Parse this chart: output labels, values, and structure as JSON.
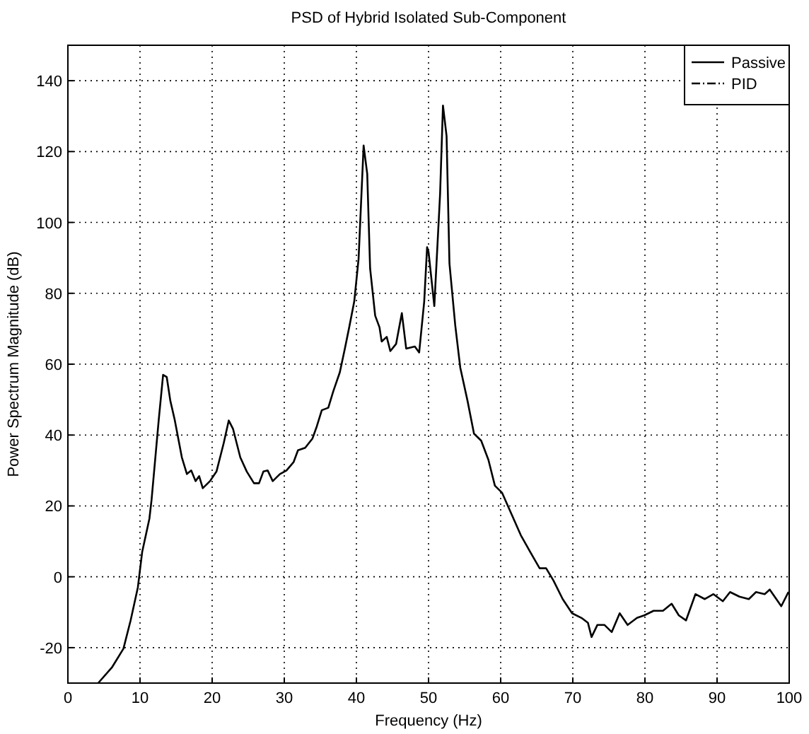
{
  "chart_data": {
    "type": "line",
    "title": "PSD of Hybrid Isolated Sub-Component",
    "xlabel": "Frequency (Hz)",
    "ylabel": "Power Spectrum Magnitude (dB)",
    "x": [
      4.2,
      6.1,
      7.7,
      8.7,
      9.7,
      10.3,
      11.3,
      11.6,
      12.6,
      13.2,
      13.7,
      14.2,
      14.8,
      15.8,
      16.5,
      17.1,
      17.7,
      18.2,
      18.7,
      19.7,
      20.6,
      21.6,
      22.3,
      22.9,
      23.9,
      24.8,
      25.8,
      26.5,
      27.1,
      27.7,
      28.4,
      29.4,
      30.3,
      31.3,
      31.9,
      32.9,
      33.9,
      34.5,
      35.2,
      36.1,
      36.8,
      37.7,
      38.4,
      39,
      39.7,
      40.3,
      41,
      41.5,
      41.9,
      42.6,
      43.2,
      43.5,
      44.2,
      44.7,
      45.5,
      46.3,
      46.9,
      48.1,
      48.7,
      49.4,
      49.8,
      50,
      50.8,
      51.6,
      52,
      52.5,
      52.9,
      53.7,
      54.4,
      55.4,
      56.3,
      57.3,
      58.3,
      59.2,
      60.2,
      61.5,
      62.8,
      64.1,
      65.4,
      66.3,
      67.3,
      68.6,
      69.9,
      71.2,
      72.1,
      72.6,
      73.4,
      74.4,
      75.4,
      76.5,
      77.6,
      78.9,
      79.9,
      81.2,
      82.5,
      83.7,
      84.7,
      85.7,
      87,
      88.3,
      89.5,
      90.8,
      91.8,
      93.1,
      94.4,
      95.4,
      96.6,
      97.3,
      98.9,
      99.9
    ],
    "series": [
      {
        "name": "Passive",
        "color": "#000000",
        "line_style": "solid",
        "values": [
          -30,
          -25.6,
          -20.3,
          -12.3,
          -3,
          7,
          16.4,
          21.7,
          44.4,
          57,
          56.4,
          49.7,
          44.4,
          33.7,
          29,
          30,
          27,
          28.4,
          25,
          27,
          29.7,
          37.7,
          44.1,
          41.7,
          33.7,
          29.7,
          26.4,
          26.4,
          29.7,
          30,
          27,
          29,
          30,
          32.4,
          35.7,
          36.4,
          39,
          42.4,
          47,
          47.7,
          52.4,
          57.7,
          64.4,
          70.4,
          77.7,
          89.7,
          121.7,
          113.7,
          87,
          73.7,
          70.4,
          66.4,
          67.7,
          63.7,
          65.7,
          74.4,
          64.4,
          65,
          63.3,
          77.7,
          93,
          91.7,
          76.4,
          108,
          133,
          124.4,
          88.4,
          71,
          59,
          49.7,
          40.4,
          38.4,
          33,
          25.7,
          23.7,
          17.7,
          11.7,
          7,
          2.4,
          2.4,
          -1,
          -6.3,
          -10.3,
          -11.6,
          -13,
          -17,
          -13.6,
          -13.6,
          -15.6,
          -10.3,
          -13.6,
          -11.6,
          -10.9,
          -9.6,
          -9.6,
          -7.6,
          -10.9,
          -12.3,
          -4.9,
          -6.3,
          -4.9,
          -6.9,
          -4.3,
          -5.6,
          -6.3,
          -4.3,
          -4.9,
          -3.6,
          -8.3,
          -4.3
        ]
      },
      {
        "name": "PID",
        "color": "#000000",
        "line_style": "dashed",
        "values": [
          null,
          null,
          null,
          null,
          null,
          null,
          null,
          null,
          null,
          null,
          null,
          null,
          null,
          null,
          null,
          null,
          null,
          null,
          null,
          null,
          null,
          null,
          null,
          null,
          null,
          null,
          null,
          null,
          null,
          null,
          null,
          null,
          null,
          null,
          null,
          null,
          null,
          null,
          null,
          null,
          null,
          null,
          null,
          null,
          null,
          null,
          null,
          null,
          null,
          null,
          null,
          null,
          null,
          null,
          null,
          null,
          null,
          null,
          null,
          null,
          null,
          null,
          null,
          null,
          null,
          null,
          null,
          null,
          null,
          null,
          null,
          null,
          null,
          null,
          null,
          null,
          null,
          null,
          null,
          null,
          null,
          null,
          null,
          null,
          null,
          null,
          null,
          null,
          null,
          null,
          null,
          null,
          null,
          null,
          null,
          null,
          null,
          null,
          null,
          null,
          null,
          null,
          null,
          null,
          null,
          null,
          null,
          null,
          null,
          null
        ]
      }
    ],
    "xlim": [
      0,
      100
    ],
    "xticks": [
      0,
      10,
      20,
      30,
      40,
      50,
      60,
      70,
      80,
      90,
      100
    ],
    "ylim": [
      -30,
      150
    ],
    "yticks": [
      -20,
      0,
      20,
      40,
      60,
      80,
      100,
      120,
      140
    ],
    "grid": true,
    "legend": "top right"
  }
}
